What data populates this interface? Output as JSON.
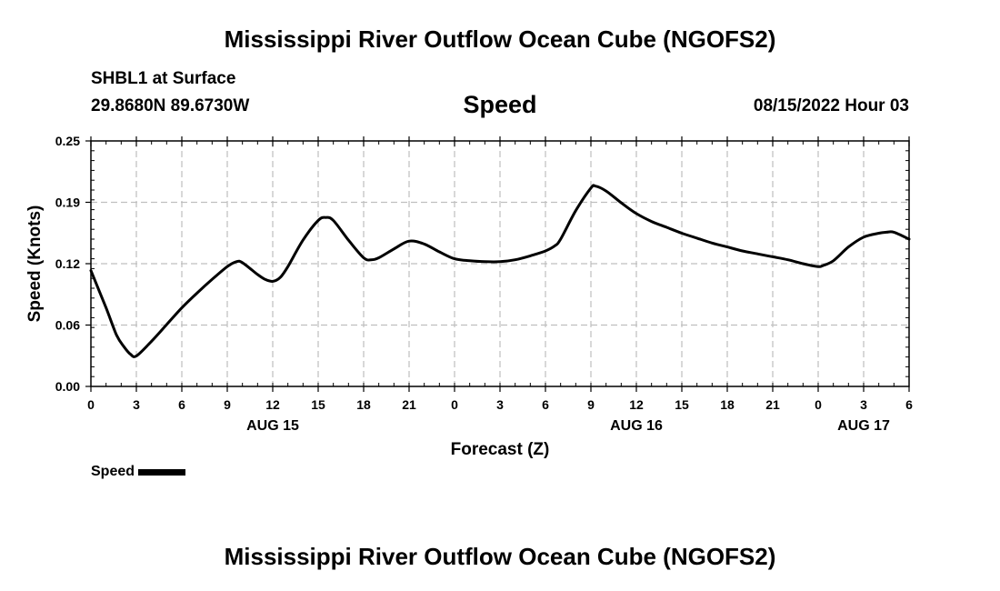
{
  "header": {
    "title": "Mississippi River Outflow Ocean Cube (NGOFS2)",
    "station": "SHBL1 at Surface",
    "coords": "29.8680N  89.6730W",
    "chart_title": "Speed",
    "timestamp": "08/15/2022 Hour 03"
  },
  "footer": {
    "title": "Mississippi River Outflow Ocean Cube (NGOFS2)"
  },
  "legend": {
    "label": "Speed"
  },
  "colors": {
    "line": "#000000",
    "grid": "#bfbfbf"
  },
  "chart_data": {
    "type": "line",
    "title": "Speed",
    "xlabel": "Forecast (Z)",
    "ylabel": "Speed (Knots)",
    "xlim": [
      0,
      54
    ],
    "ylim": [
      0.0,
      0.25
    ],
    "yticks": [
      "0.00",
      "0.06",
      "0.12",
      "0.19",
      "0.25"
    ],
    "ytick_values": [
      0.0,
      0.0625,
      0.125,
      0.1875,
      0.25
    ],
    "xticks": [
      "0",
      "3",
      "6",
      "9",
      "12",
      "15",
      "18",
      "21",
      "0",
      "3",
      "6",
      "9",
      "12",
      "15",
      "18",
      "21",
      "0",
      "3",
      "6"
    ],
    "xtick_hours": [
      0,
      3,
      6,
      9,
      12,
      15,
      18,
      21,
      24,
      27,
      30,
      33,
      36,
      39,
      42,
      45,
      48,
      51,
      54
    ],
    "date_labels": [
      {
        "label": "AUG 15",
        "hour": 12
      },
      {
        "label": "AUG 16",
        "hour": 36
      },
      {
        "label": "AUG 17",
        "hour": 51
      }
    ],
    "grid": true,
    "series": [
      {
        "name": "Speed",
        "x": [
          0,
          1,
          1.7,
          2.2,
          2.6,
          3,
          4,
          5,
          6,
          7,
          8,
          9,
          9.6,
          10,
          11,
          11.5,
          12,
          12.5,
          13,
          14,
          15,
          15.5,
          16,
          17,
          18,
          18.5,
          19,
          20,
          21,
          22,
          23,
          24,
          25,
          26,
          27,
          28,
          29,
          30,
          30.6,
          31,
          32,
          33,
          33.3,
          34,
          35,
          36,
          37,
          38,
          39,
          40,
          41,
          42,
          43,
          44,
          45,
          46,
          47,
          48,
          48.3,
          49,
          50,
          51,
          52,
          52.5,
          53,
          54
        ],
        "y": [
          0.118,
          0.08,
          0.052,
          0.04,
          0.033,
          0.031,
          0.046,
          0.063,
          0.08,
          0.095,
          0.109,
          0.122,
          0.127,
          0.126,
          0.114,
          0.109,
          0.107,
          0.111,
          0.122,
          0.149,
          0.169,
          0.172,
          0.169,
          0.149,
          0.131,
          0.129,
          0.131,
          0.14,
          0.148,
          0.145,
          0.137,
          0.13,
          0.128,
          0.127,
          0.127,
          0.129,
          0.133,
          0.138,
          0.143,
          0.15,
          0.179,
          0.202,
          0.204,
          0.199,
          0.187,
          0.176,
          0.168,
          0.162,
          0.156,
          0.151,
          0.146,
          0.142,
          0.138,
          0.135,
          0.132,
          0.129,
          0.125,
          0.122,
          0.123,
          0.128,
          0.142,
          0.152,
          0.156,
          0.157,
          0.157,
          0.15
        ]
      }
    ]
  }
}
